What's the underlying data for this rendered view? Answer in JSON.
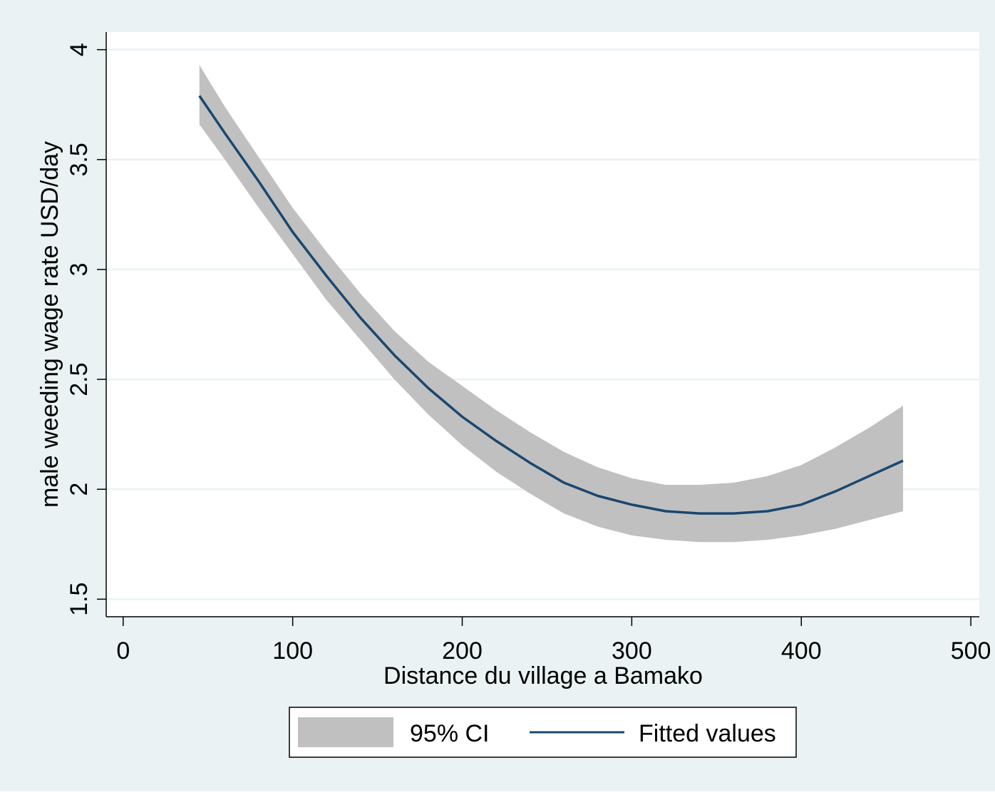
{
  "chart_data": {
    "type": "line",
    "title": "",
    "xlabel": "Distance du village a Bamako",
    "ylabel": "male weeding wage rate USD/day",
    "xlim": [
      -10,
      505
    ],
    "ylim": [
      1.42,
      4.08
    ],
    "xticks": [
      0,
      100,
      200,
      300,
      400,
      500
    ],
    "xtick_labels": [
      "0",
      "100",
      "200",
      "300",
      "400",
      "500"
    ],
    "yticks": [
      1.5,
      2,
      2.5,
      3,
      3.5,
      4
    ],
    "ytick_labels": [
      "1.5",
      "2",
      "2.5",
      "3",
      "3.5",
      "4"
    ],
    "grid": true,
    "legend_position": "bottom",
    "colors": {
      "background": "#eaf2f3",
      "plot_background": "#ffffff",
      "grid": "#eaf2f3",
      "ci_fill": "#c0c0c0",
      "line": "#1a476f",
      "axis": "#000000"
    },
    "series": [
      {
        "name": "95% CI",
        "type": "band",
        "x": [
          45,
          60,
          80,
          100,
          120,
          140,
          160,
          180,
          200,
          220,
          240,
          260,
          280,
          300,
          320,
          340,
          360,
          380,
          400,
          420,
          440,
          460
        ],
        "lower": [
          3.66,
          3.5,
          3.28,
          3.07,
          2.86,
          2.68,
          2.5,
          2.34,
          2.2,
          2.08,
          1.98,
          1.89,
          1.83,
          1.79,
          1.77,
          1.76,
          1.76,
          1.77,
          1.79,
          1.82,
          1.86,
          1.9
        ],
        "upper": [
          3.93,
          3.74,
          3.51,
          3.28,
          3.08,
          2.89,
          2.72,
          2.58,
          2.47,
          2.36,
          2.26,
          2.17,
          2.1,
          2.05,
          2.02,
          2.02,
          2.03,
          2.06,
          2.11,
          2.19,
          2.28,
          2.38
        ]
      },
      {
        "name": "Fitted values",
        "type": "line",
        "x": [
          45,
          60,
          80,
          100,
          120,
          140,
          160,
          180,
          200,
          220,
          240,
          260,
          280,
          300,
          320,
          340,
          360,
          380,
          400,
          420,
          440,
          460
        ],
        "values": [
          3.79,
          3.62,
          3.4,
          3.17,
          2.97,
          2.78,
          2.61,
          2.46,
          2.33,
          2.22,
          2.12,
          2.03,
          1.97,
          1.93,
          1.9,
          1.89,
          1.89,
          1.9,
          1.93,
          1.99,
          2.06,
          2.13
        ]
      }
    ]
  }
}
